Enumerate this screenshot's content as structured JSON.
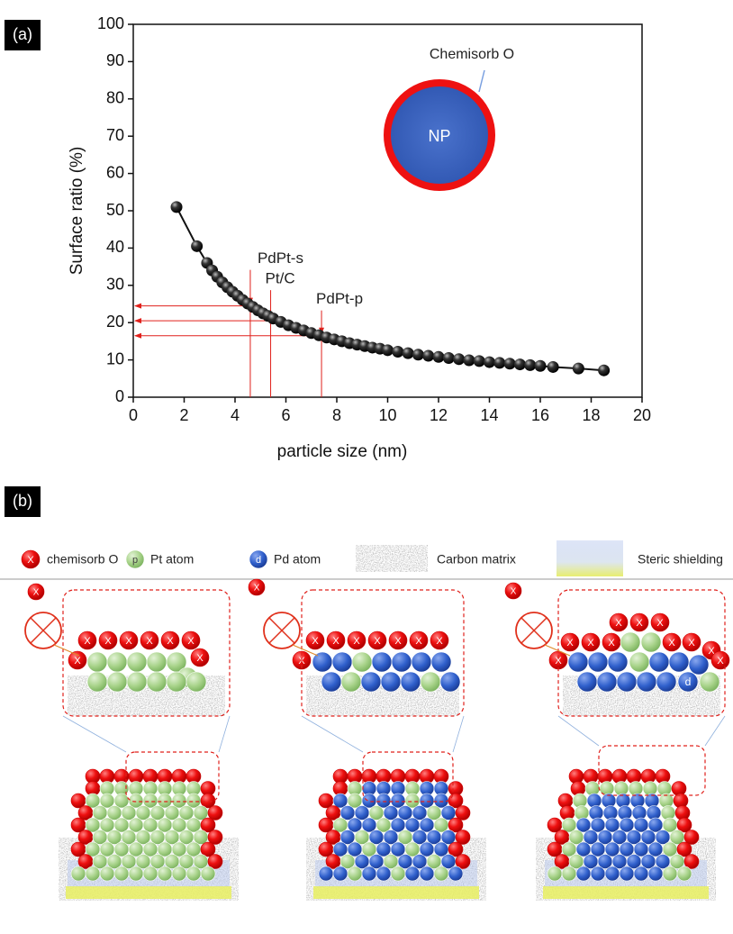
{
  "chart_data": {
    "type": "line",
    "panel_label": "(a)",
    "xlabel": "particle size (nm)",
    "ylabel": "Surface ratio (%)",
    "x": [
      1.7,
      2.5,
      2.9,
      3.1,
      3.3,
      3.5,
      3.7,
      3.9,
      4.1,
      4.3,
      4.5,
      4.7,
      4.9,
      5.1,
      5.3,
      5.5,
      5.8,
      6.1,
      6.4,
      6.7,
      7.0,
      7.3,
      7.6,
      7.9,
      8.2,
      8.5,
      8.8,
      9.1,
      9.4,
      9.7,
      10.0,
      10.4,
      10.8,
      11.2,
      11.6,
      12.0,
      12.4,
      12.8,
      13.2,
      13.6,
      14.0,
      14.4,
      14.8,
      15.2,
      15.6,
      16.0,
      16.5,
      17.5,
      18.5
    ],
    "values": [
      51,
      40.5,
      36,
      34,
      32.3,
      30.8,
      29.5,
      28.3,
      27.2,
      26.1,
      25.1,
      24.2,
      23.3,
      22.5,
      21.8,
      21.1,
      20.2,
      19.3,
      18.6,
      17.9,
      17.2,
      16.6,
      16.0,
      15.5,
      15.0,
      14.5,
      14.1,
      13.7,
      13.3,
      13.0,
      12.6,
      12.2,
      11.8,
      11.4,
      11.1,
      10.8,
      10.5,
      10.2,
      9.9,
      9.7,
      9.4,
      9.2,
      9.0,
      8.8,
      8.6,
      8.4,
      8.1,
      7.7,
      7.2
    ],
    "color": "#111111",
    "xlim": [
      0,
      20
    ],
    "xticks": [
      0,
      2,
      4,
      6,
      8,
      10,
      12,
      14,
      16,
      18,
      20
    ],
    "ylim": [
      0,
      100
    ],
    "yticks": [
      0,
      10,
      20,
      30,
      40,
      50,
      60,
      70,
      80,
      90,
      100
    ],
    "grid": false,
    "annotations": [
      {
        "text": "PdPt-s",
        "x": 4.6,
        "y": 24.5
      },
      {
        "text": "Pt/C",
        "x": 5.4,
        "y": 20.5
      },
      {
        "text": "PdPt-p",
        "x": 7.4,
        "y": 16.5
      }
    ],
    "annotation_color": "#e0201b",
    "inset": {
      "core": "NP",
      "shell": "Chemisorb O"
    }
  },
  "panel_b": {
    "label": "(b)",
    "legend": [
      {
        "symbol": "X",
        "text": "chemisorb O"
      },
      {
        "symbol": "p",
        "text": "Pt atom"
      },
      {
        "symbol": "d",
        "text": "Pd atom"
      },
      {
        "text": "Carbon matrix"
      },
      {
        "text": "Steric shielding"
      }
    ]
  }
}
